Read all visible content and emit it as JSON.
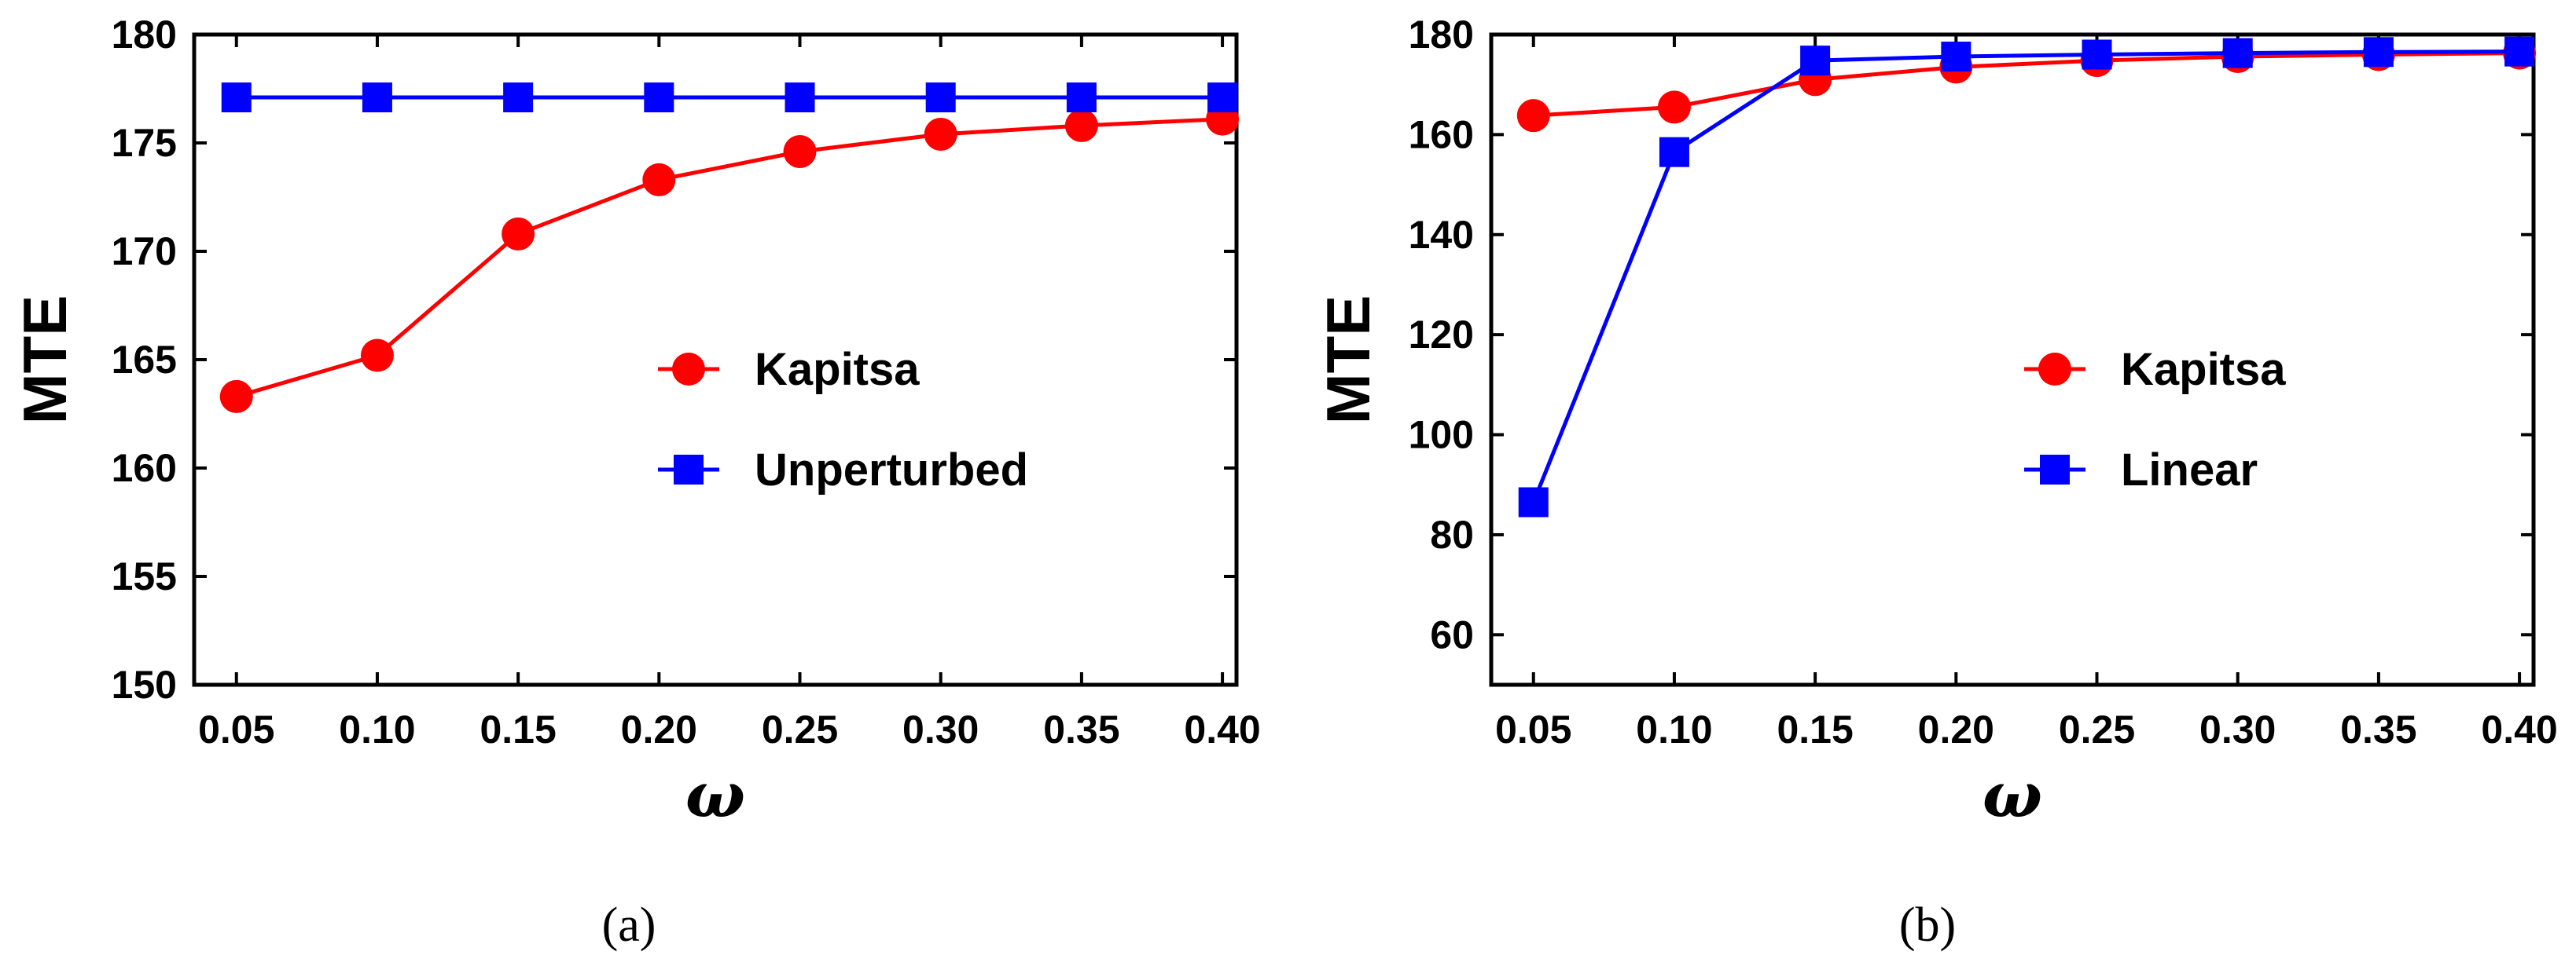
{
  "chart_data": [
    {
      "type": "line",
      "panel": "a",
      "caption": "(a)",
      "xlabel": "ω",
      "ylabel": "MTE",
      "xlim": [
        0.035,
        0.405
      ],
      "ylim": [
        150,
        180
      ],
      "xticks": [
        "0.05",
        "0.10",
        "0.15",
        "0.20",
        "0.25",
        "0.30",
        "0.35",
        "0.40"
      ],
      "yticks": [
        "150",
        "155",
        "160",
        "165",
        "170",
        "175",
        "180"
      ],
      "legend_position": "center-right",
      "x": [
        0.05,
        0.1,
        0.15,
        0.2,
        0.25,
        0.3,
        0.35,
        0.4
      ],
      "series": [
        {
          "name": "Kapitsa",
          "color": "#ff0000",
          "marker": "circle",
          "values": [
            163.3,
            165.2,
            170.8,
            173.3,
            174.6,
            175.4,
            175.8,
            176.1
          ]
        },
        {
          "name": "Unperturbed",
          "color": "#0000ff",
          "marker": "square",
          "values": [
            177.1,
            177.1,
            177.1,
            177.1,
            177.1,
            177.1,
            177.1,
            177.1
          ]
        }
      ]
    },
    {
      "type": "line",
      "panel": "b",
      "caption": "(b)",
      "xlabel": "ω",
      "ylabel": "MTE",
      "xlim": [
        0.035,
        0.405
      ],
      "ylim": [
        50,
        180
      ],
      "xticks": [
        "0.05",
        "0.10",
        "0.15",
        "0.20",
        "0.25",
        "0.30",
        "0.35",
        "0.40"
      ],
      "yticks": [
        "60",
        "80",
        "100",
        "120",
        "140",
        "160",
        "180"
      ],
      "legend_position": "center-right",
      "x": [
        0.05,
        0.1,
        0.15,
        0.2,
        0.25,
        0.3,
        0.35,
        0.4
      ],
      "series": [
        {
          "name": "Kapitsa",
          "color": "#ff0000",
          "marker": "circle",
          "values": [
            163.8,
            165.5,
            171.0,
            173.5,
            174.8,
            175.6,
            176.0,
            176.3
          ]
        },
        {
          "name": "Linear",
          "color": "#0000ff",
          "marker": "square",
          "values": [
            86.5,
            156.5,
            174.8,
            175.6,
            176.0,
            176.3,
            176.5,
            176.6
          ]
        }
      ]
    }
  ]
}
